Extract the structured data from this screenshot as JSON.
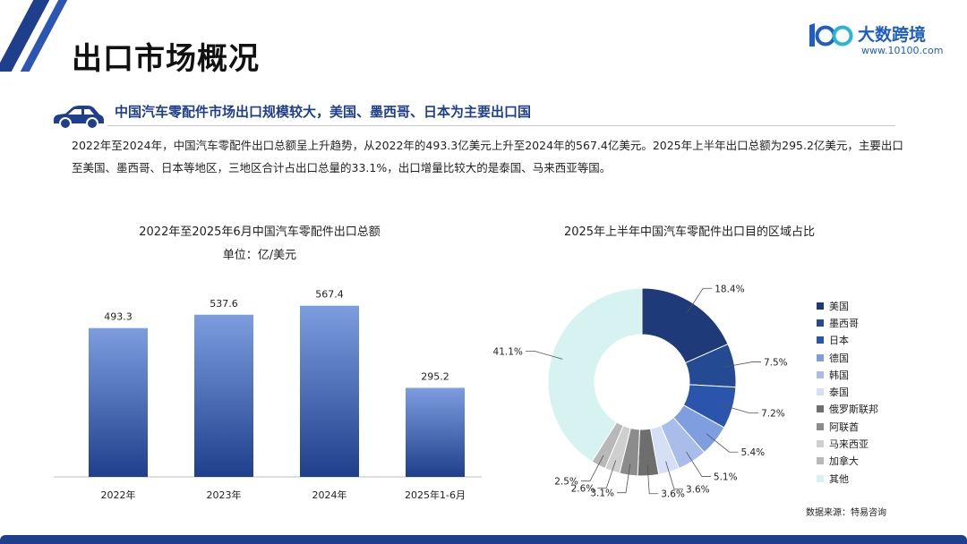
{
  "header": {
    "page_title": "出口市场概况",
    "logo_name": "大数跨境",
    "logo_url": "www.10100.com",
    "logo_mark_text": "100"
  },
  "section": {
    "subtitle": "中国汽车零配件市场出口规模较大，美国、墨西哥、日本为主要出口国",
    "summary": "2022年至2024年，中国汽车零配件出口总额呈上升趋势，从2022年的493.3亿美元上升至2024年的567.4亿美元。2025年上半年出口总额为295.2亿美元，主要出口至美国、墨西哥、日本等地区，三地区合计占出口总量的33.1%，出口增量比较大的是泰国、马来西亚等国。"
  },
  "colors": {
    "accent": "#1f3f8c",
    "bar_top": "#7d9de0",
    "bar_bottom": "#1f3f8c"
  },
  "chart_data": [
    {
      "type": "bar",
      "title": "2022年至2025年6月中国汽车零配件出口总额",
      "unit": "单位：亿/美元",
      "categories": [
        "2022年",
        "2023年",
        "2024年",
        "2025年1-6月"
      ],
      "values": [
        493.3,
        537.6,
        567.4,
        295.2
      ],
      "value_labels": [
        "493.3",
        "537.6",
        "567.4",
        "295.2"
      ],
      "ylim": [
        0,
        700
      ],
      "grid": false
    },
    {
      "type": "pie",
      "donut": true,
      "title": "2025年上半年中国汽车零配件出口目的区域占比",
      "labels": [
        "美国",
        "墨西哥",
        "日本",
        "德国",
        "韩国",
        "泰国",
        "俄罗斯联邦",
        "阿联酋",
        "马来西亚",
        "加拿大",
        "其他"
      ],
      "values": [
        18.4,
        7.5,
        7.2,
        5.4,
        5.1,
        3.6,
        3.6,
        3.1,
        2.6,
        2.5,
        41.1
      ],
      "value_labels": [
        "18.4%",
        "7.5%",
        "7.2%",
        "5.4%",
        "5.1%",
        "3.6%",
        "3.6%",
        "3.1%",
        "2.6%",
        "2.5%",
        "41.1%"
      ],
      "colors": [
        "#1f3a78",
        "#234a93",
        "#2b55ad",
        "#7e9ee0",
        "#a9bdeb",
        "#d5dff5",
        "#6e6e6e",
        "#8c8c8c",
        "#cfcfcf",
        "#b8b8b8",
        "#d6f3f2"
      ],
      "legend_position": "right"
    }
  ],
  "footer": {
    "source": "数据来源：特易咨询"
  }
}
